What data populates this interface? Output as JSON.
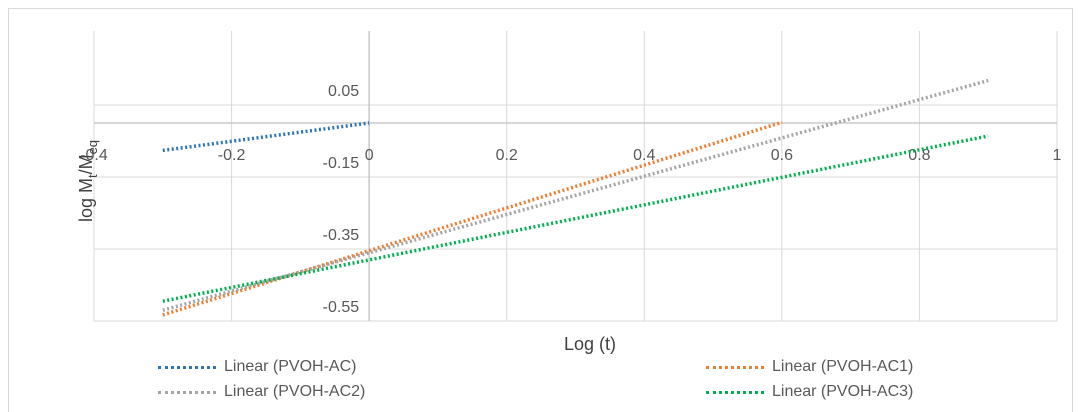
{
  "chart_data": {
    "type": "line",
    "title": "",
    "xlabel": "Log (t)",
    "ylabel": "log M_t/M_eq",
    "ylabel_parts": {
      "base": "log M",
      "sub1": "t",
      "sep": "/M",
      "sub2": "eq"
    },
    "xlim": [
      -0.4,
      1
    ],
    "ylim": [
      -0.55,
      0.15
    ],
    "x_ticks": [
      -0.4,
      -0.2,
      0,
      0.2,
      0.4,
      0.6,
      0.8,
      1
    ],
    "x_tick_labels": [
      "-0.4",
      "-0.2",
      "0",
      "0.2",
      "0.4",
      "0.6",
      "0.8",
      "1"
    ],
    "y_ticks": [
      -0.55,
      -0.35,
      -0.15,
      0.05
    ],
    "y_tick_labels": [
      "-0.55",
      "-0.35",
      "-0.15",
      "0.05"
    ],
    "grid": true,
    "legend_position": "bottom",
    "series": [
      {
        "name": "Linear (PVOH-AC)",
        "color": "#2e75b6",
        "x": [
          -0.3,
          0
        ],
        "y": [
          -0.076,
          0.0
        ]
      },
      {
        "name": "Linear (PVOH-AC1)",
        "color": "#ed7d31",
        "x": [
          -0.3,
          0.6
        ],
        "y": [
          -0.533,
          0.002
        ]
      },
      {
        "name": "Linear (PVOH-AC2)",
        "color": "#a5a5a5",
        "x": [
          -0.3,
          0.9
        ],
        "y": [
          -0.52,
          0.118
        ]
      },
      {
        "name": "Linear (PVOH-AC3)",
        "color": "#00b050",
        "x": [
          -0.3,
          0.9
        ],
        "y": [
          -0.495,
          -0.036
        ]
      }
    ]
  }
}
